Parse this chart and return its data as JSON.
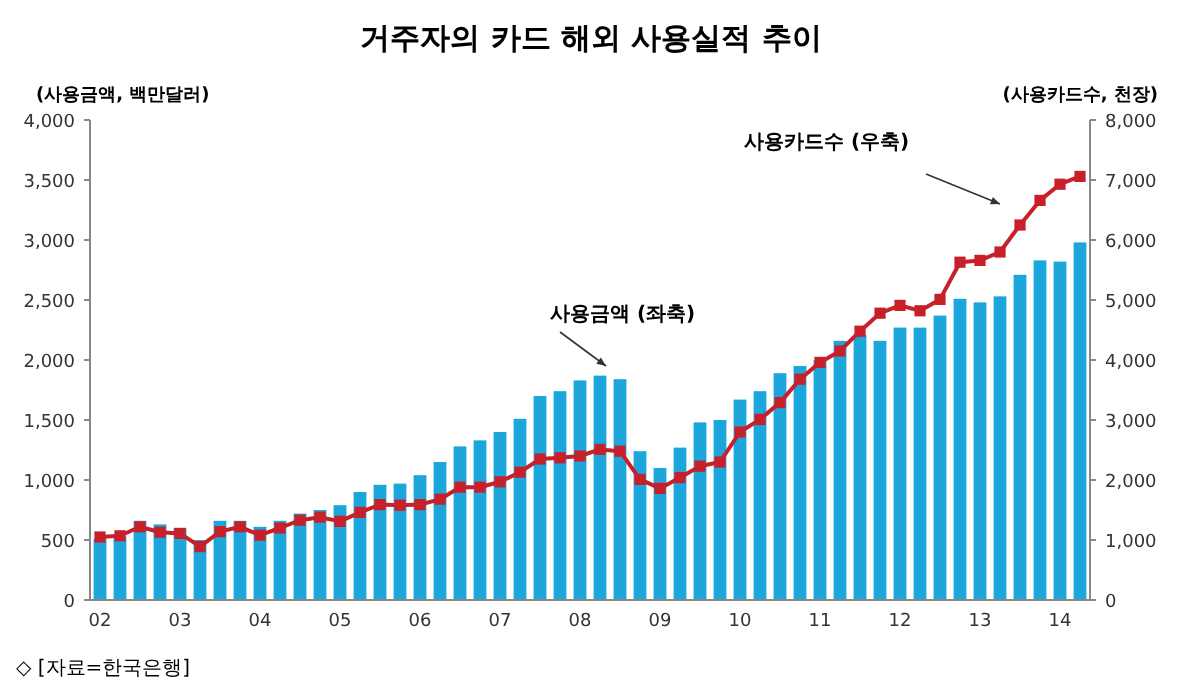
{
  "chart_data": {
    "type": "bar",
    "title": "거주자의 카드 해외 사용실적 추이",
    "ylabel": "(사용금액, 백만달러)",
    "y2label": "(사용카드수, 천장)",
    "annotations": [
      "사용금액 (좌축)",
      "사용카드수 (우축)",
      "◇ [자료=한국은행]"
    ],
    "categories": [
      "02",
      null,
      null,
      null,
      "03",
      null,
      null,
      null,
      "04",
      null,
      null,
      null,
      "05",
      null,
      null,
      null,
      "06",
      null,
      null,
      null,
      "07",
      null,
      null,
      null,
      "08",
      null,
      null,
      null,
      "09",
      null,
      null,
      null,
      "10",
      null,
      null,
      null,
      "11",
      null,
      null,
      null,
      "12",
      null,
      null,
      null,
      "13",
      null,
      null,
      null,
      "14",
      null
    ],
    "series": [
      {
        "color": "#1ba6dc",
        "values": [
          510,
          530,
          660,
          630,
          600,
          500,
          660,
          660,
          610,
          660,
          720,
          750,
          790,
          900,
          960,
          970,
          1040,
          1150,
          1280,
          1330,
          1400,
          1510,
          1700,
          1740,
          1830,
          1870,
          1840,
          1240,
          1100,
          1270,
          1480,
          1500,
          1670,
          1740,
          1890,
          1950,
          2000,
          2160,
          2210,
          2160,
          2270,
          2270,
          2370,
          2510,
          2480,
          2530,
          2710,
          2830,
          2820,
          2980
        ]
      },
      {
        "type": "line",
        "axis": "y2",
        "color": "#c8202a",
        "marker": "square",
        "values": [
          1050,
          1070,
          1220,
          1130,
          1110,
          890,
          1140,
          1220,
          1080,
          1200,
          1330,
          1380,
          1310,
          1460,
          1590,
          1580,
          1590,
          1680,
          1880,
          1880,
          1970,
          2130,
          2350,
          2370,
          2400,
          2510,
          2480,
          2010,
          1860,
          2040,
          2230,
          2300,
          2800,
          3010,
          3290,
          3680,
          3960,
          4150,
          4480,
          4780,
          4910,
          4820,
          5010,
          5630,
          5660,
          5800,
          6250,
          6660,
          6930,
          7060
        ]
      }
    ],
    "ylim": [
      0,
      4000
    ],
    "yticks": [
      0,
      500,
      {
        "value": 1000,
        "label": "1,000"
      },
      {
        "value": 1500,
        "label": "1,500"
      },
      {
        "value": 2000,
        "label": "2,000"
      },
      {
        "value": 2500,
        "label": "2,500"
      },
      {
        "value": 3000,
        "label": "3,000"
      },
      {
        "value": 3500,
        "label": "3,500"
      },
      {
        "value": 4000,
        "label": "4,000"
      }
    ],
    "y2lim": [
      0,
      8000
    ],
    "y2ticks": [
      0,
      {
        "value": 1000,
        "label": "1,000"
      },
      {
        "value": 2000,
        "label": "2,000"
      },
      {
        "value": 3000,
        "label": "3,000"
      },
      {
        "value": 4000,
        "label": "4,000"
      },
      {
        "value": 5000,
        "label": "5,000"
      },
      {
        "value": 6000,
        "label": "6,000"
      },
      {
        "value": 7000,
        "label": "7,000"
      },
      {
        "value": 8000,
        "label": "8,000"
      }
    ],
    "grid": false
  }
}
